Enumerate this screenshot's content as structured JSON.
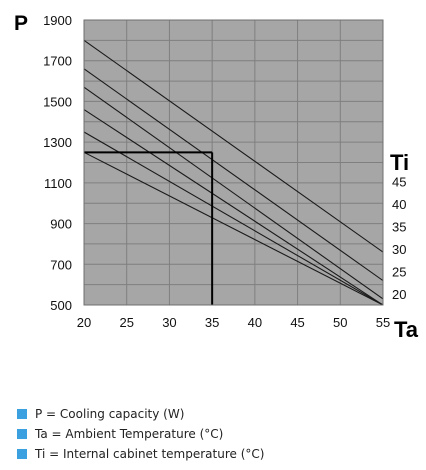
{
  "chart_data": {
    "type": "line",
    "y_axis_symbol": "P",
    "x_axis_symbol": "Ta",
    "series_axis_symbol": "Ti",
    "x_ticks": [
      20,
      25,
      30,
      35,
      40,
      45,
      50,
      55
    ],
    "y_ticks": [
      500,
      700,
      900,
      1100,
      1300,
      1500,
      1700,
      1900
    ],
    "xlim": [
      20,
      55
    ],
    "ylim": [
      500,
      1900
    ],
    "grid": true,
    "series": [
      {
        "name": "45",
        "x": [
          20,
          55
        ],
        "y": [
          1800,
          760
        ]
      },
      {
        "name": "40",
        "x": [
          20,
          55
        ],
        "y": [
          1660,
          620
        ]
      },
      {
        "name": "35",
        "x": [
          20,
          55
        ],
        "y": [
          1570,
          530
        ]
      },
      {
        "name": "30",
        "x": [
          20,
          55
        ],
        "y": [
          1460,
          500
        ]
      },
      {
        "name": "25",
        "x": [
          20,
          55
        ],
        "y": [
          1350,
          500
        ]
      },
      {
        "name": "20",
        "x": [
          20,
          55
        ],
        "y": [
          1250,
          500
        ]
      }
    ],
    "example_reading": {
      "x": 35,
      "y": 1250
    },
    "colors": {
      "plot_background": "#a6a6a6",
      "grid": "#7f7f7f",
      "lines": "#1a1a1a"
    }
  },
  "legend": {
    "items": [
      "P = Cooling capacity (W)",
      "Ta = Ambient Temperature (°C)",
      "Ti = Internal cabinet temperature (°C)"
    ],
    "marker_color": "#3aa0e0"
  }
}
